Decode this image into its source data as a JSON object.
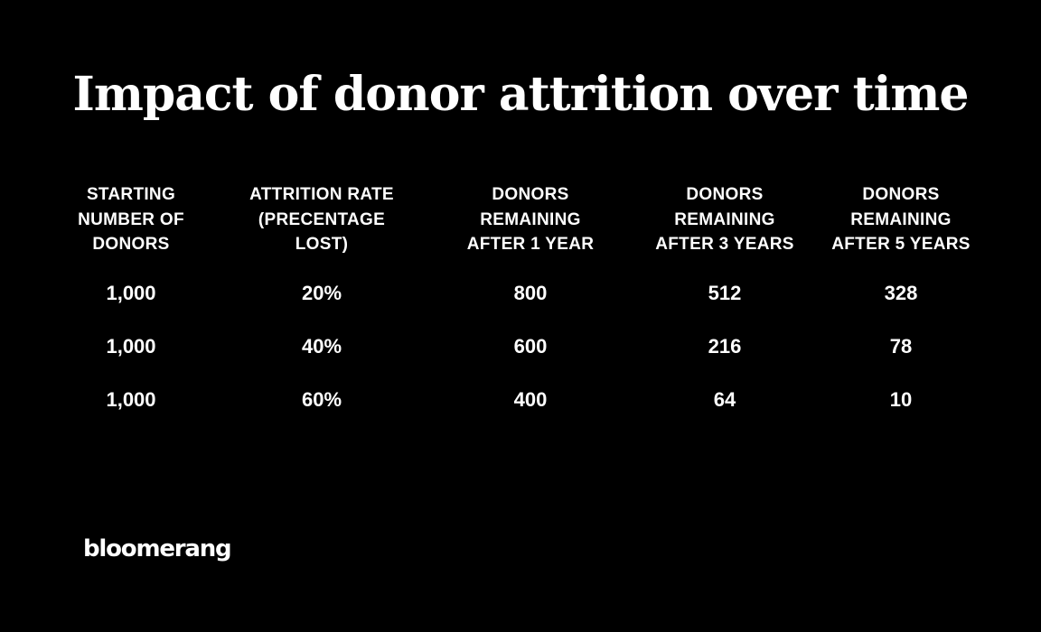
{
  "title": "Impact of donor attrition over time",
  "table": {
    "headers": [
      "STARTING\nNUMBER OF\nDONORS",
      "ATTRITION RATE\n(PRECENTAGE\nLOST)",
      "DONORS\nREMAINING\nAFTER 1 YEAR",
      "DONORS\nREMAINING\nAFTER 3 YEARS",
      "DONORS\nREMAINING\nAFTER 5 YEARS"
    ],
    "rows": [
      [
        "1,000",
        "20%",
        "800",
        "512",
        "328"
      ],
      [
        "1,000",
        "40%",
        "600",
        "216",
        "78"
      ],
      [
        "1,000",
        "60%",
        "400",
        "64",
        "10"
      ]
    ]
  },
  "brand": {
    "logo_text": "bloomerang"
  }
}
